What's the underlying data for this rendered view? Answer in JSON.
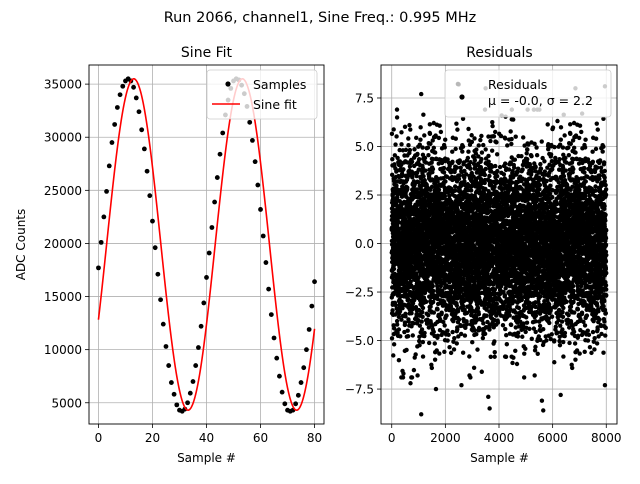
{
  "suptitle": "Run 2066, channel1, Sine Freq.: 0.995 MHz",
  "chart_data": [
    {
      "type": "line",
      "title": "Sine Fit",
      "xlabel": "Sample #",
      "ylabel": "ADC Counts",
      "xlim": [
        -3.5,
        83.5
      ],
      "ylim": [
        3000,
        36800
      ],
      "xticks": [
        0,
        20,
        40,
        60,
        80
      ],
      "yticks": [
        5000,
        10000,
        15000,
        20000,
        25000,
        30000,
        35000
      ],
      "grid": true,
      "legend_position": "top-right",
      "sine_model": {
        "offset": 19900,
        "amplitude": 15600,
        "period": 40.2,
        "phase_deg": 333
      },
      "series": [
        {
          "name": "Samples",
          "style": "scatter",
          "color": "#000000",
          "x": [
            0,
            1,
            2,
            3,
            4,
            5,
            6,
            7,
            8,
            9,
            10,
            11,
            12,
            13,
            14,
            15,
            16,
            17,
            18,
            19,
            20,
            21,
            22,
            23,
            24,
            25,
            26,
            27,
            28,
            29,
            30,
            31,
            32,
            33,
            34,
            35,
            36,
            37,
            38,
            39,
            40,
            41,
            42,
            43,
            44,
            45,
            46,
            47,
            48,
            49,
            50,
            51,
            52,
            53,
            54,
            55,
            56,
            57,
            58,
            59,
            60,
            61,
            62,
            63,
            64,
            65,
            66,
            67,
            68,
            69,
            70,
            71,
            72,
            73,
            74,
            75,
            76,
            77,
            78,
            79,
            80
          ],
          "y": [
            17700,
            20100,
            22500,
            24900,
            27300,
            29500,
            31200,
            32800,
            34000,
            34800,
            35300,
            35500,
            35300,
            34700,
            33700,
            32400,
            30700,
            28900,
            26800,
            24500,
            22100,
            19600,
            17100,
            14700,
            12400,
            10300,
            8500,
            6900,
            5800,
            4800,
            4300,
            4200,
            4400,
            5000,
            5900,
            7000,
            8500,
            10200,
            12200,
            14400,
            16800,
            19100,
            21500,
            23900,
            26200,
            28400,
            30400,
            32100,
            33500,
            34600,
            35300,
            35500,
            35400,
            34900,
            34100,
            32900,
            31400,
            29700,
            27700,
            25500,
            23200,
            20700,
            18200,
            15700,
            13300,
            11100,
            9200,
            7500,
            6000,
            4900,
            4300,
            4200,
            4300,
            4900,
            5700,
            6900,
            8300,
            10000,
            11900,
            14100,
            16400
          ]
        },
        {
          "name": "Sine fit",
          "style": "line",
          "color": "#ff0000"
        }
      ]
    },
    {
      "type": "scatter",
      "title": "Residuals",
      "xlabel": "Sample #",
      "ylim": [
        -9.3,
        9.2
      ],
      "xlim": [
        -400,
        8400
      ],
      "xticks": [
        0,
        2000,
        4000,
        6000,
        8000
      ],
      "yticks": [
        -7.5,
        -5.0,
        -2.5,
        0.0,
        2.5,
        5.0,
        7.5
      ],
      "grid": true,
      "legend_position": "top-right",
      "legend_text": [
        "Residuals",
        "μ = -0.0, σ = 2.2"
      ],
      "stats": {
        "mean": -0.0,
        "sigma": 2.2,
        "n_samples": 8000,
        "x_min": 0,
        "x_max": 8000
      },
      "outliers": [
        {
          "x": 1100,
          "y": 7.7
        },
        {
          "x": 3500,
          "y": 8.0
        },
        {
          "x": 2500,
          "y": 8.2
        },
        {
          "x": 7950,
          "y": 8.1
        },
        {
          "x": 6850,
          "y": 8.0
        },
        {
          "x": 1100,
          "y": -8.8
        },
        {
          "x": 1650,
          "y": -7.5
        },
        {
          "x": 2600,
          "y": -7.3
        },
        {
          "x": 3600,
          "y": -7.9
        },
        {
          "x": 3650,
          "y": -8.5
        },
        {
          "x": 5600,
          "y": -8.1
        },
        {
          "x": 5650,
          "y": -8.6
        },
        {
          "x": 6300,
          "y": -7.8
        },
        {
          "x": 7950,
          "y": -7.3
        },
        {
          "x": 700,
          "y": -7.2
        },
        {
          "x": 4100,
          "y": 6.6
        },
        {
          "x": 5300,
          "y": 6.9
        },
        {
          "x": 7100,
          "y": 6.7
        },
        {
          "x": 200,
          "y": 6.5
        },
        {
          "x": 2900,
          "y": -6.8
        }
      ]
    }
  ],
  "colors": {
    "samples": "#000000",
    "fit": "#ff0000",
    "grid": "#b0b0b0",
    "legend_border": "#cccccc"
  }
}
